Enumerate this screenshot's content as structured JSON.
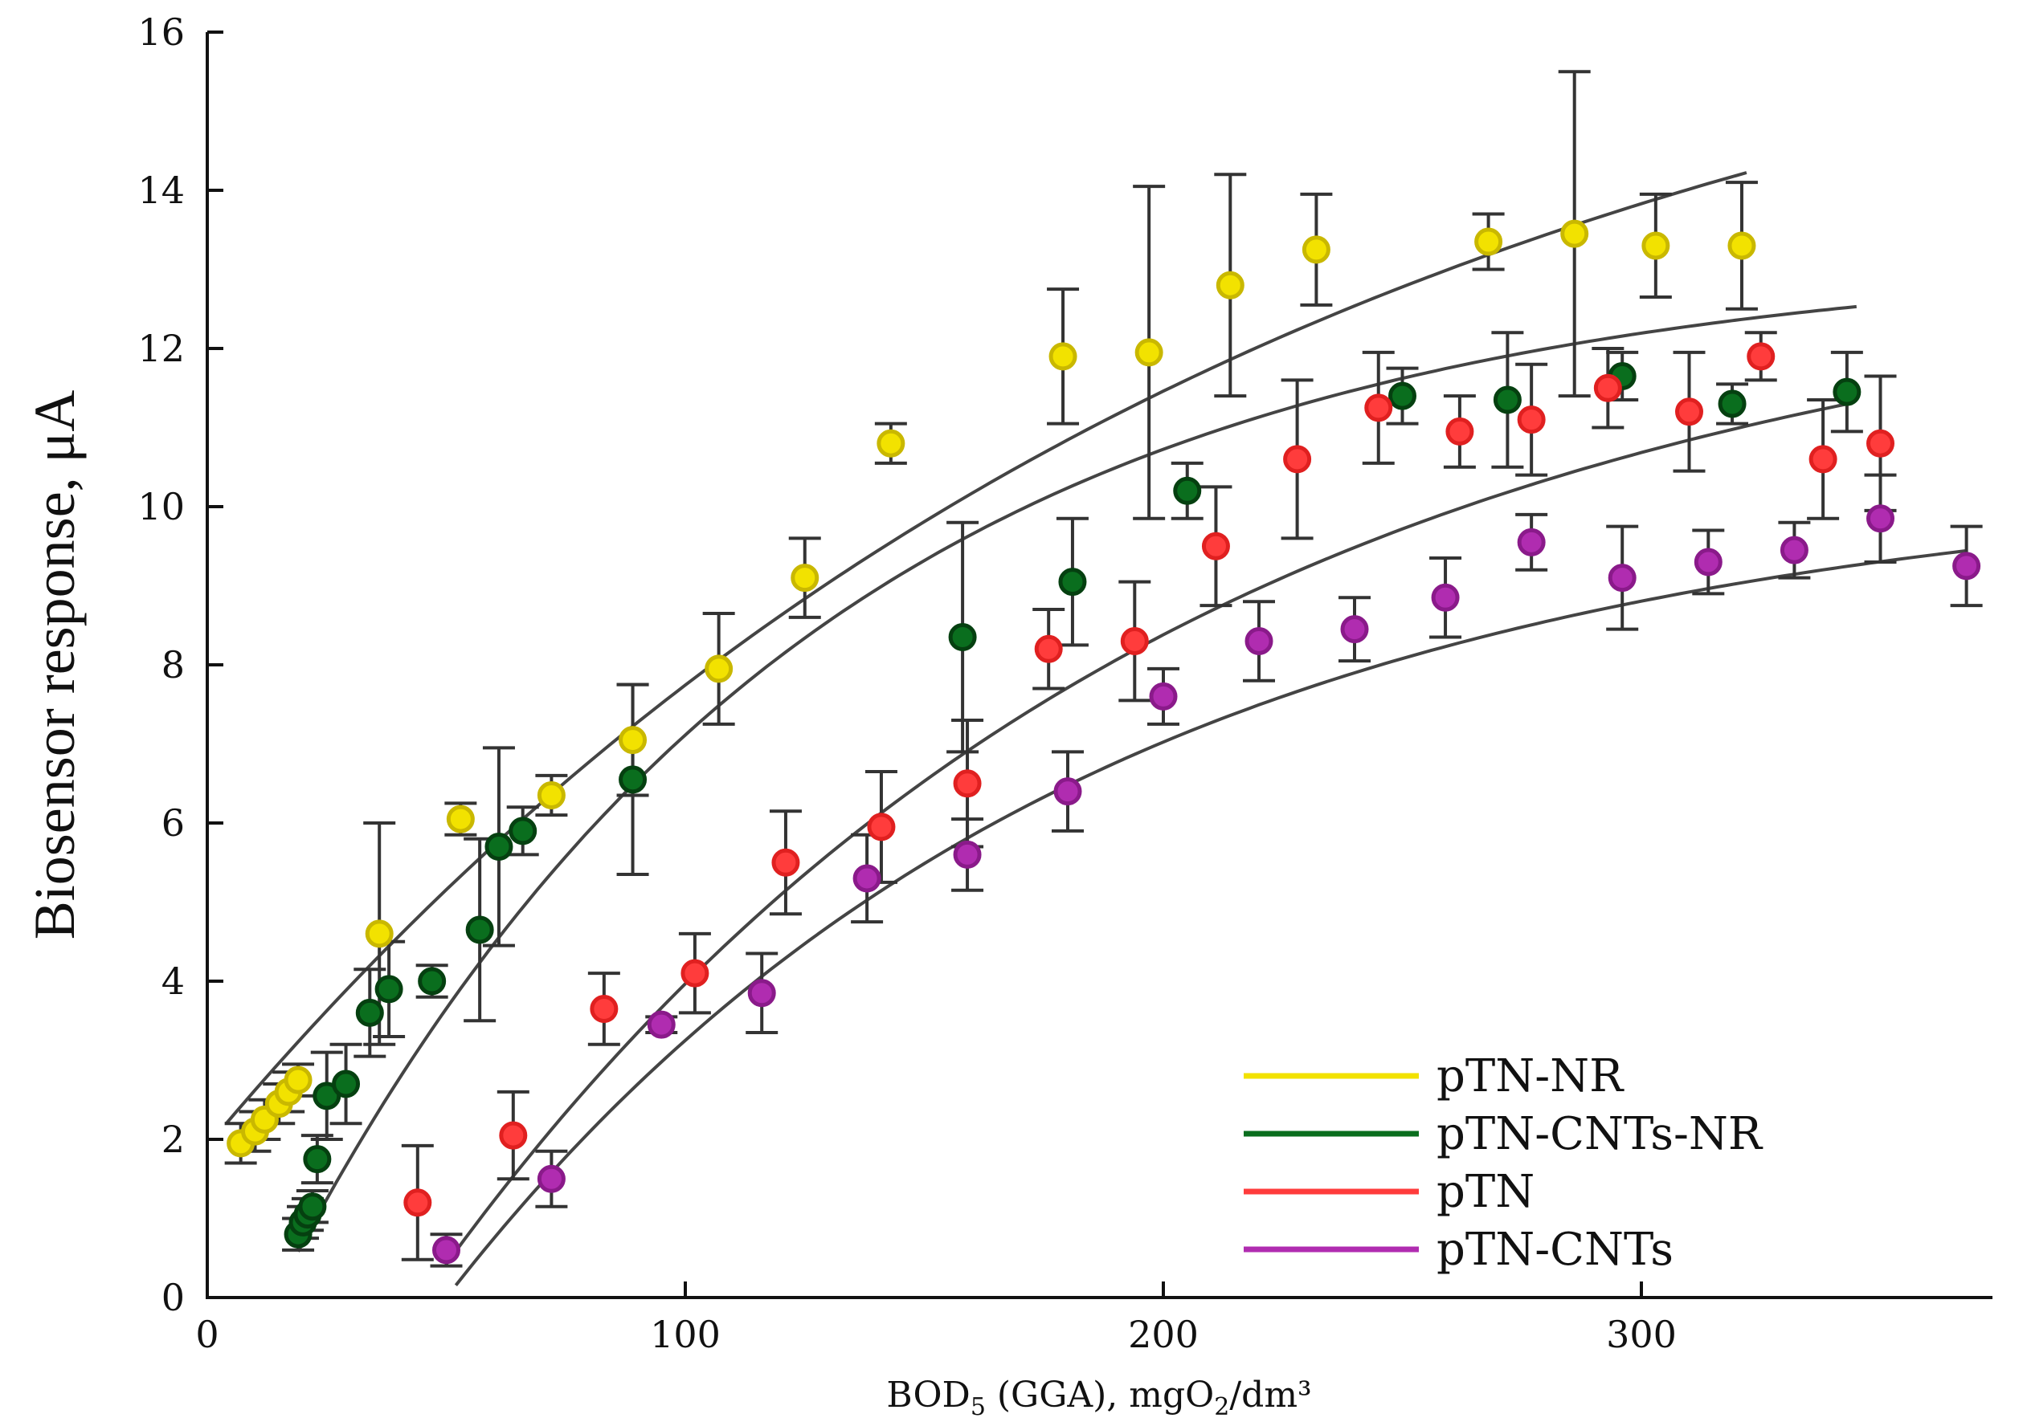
{
  "chart_data": {
    "type": "scatter",
    "xlabel_parts": {
      "main": "BOD",
      "sub": "5",
      "mid": " (GGA), mgO",
      "sub2": "2",
      "tail": "/dm³"
    },
    "ylabel": "Biosensor response, μA",
    "xlim": [
      0,
      380
    ],
    "ylim": [
      0,
      16
    ],
    "xticks": [
      0,
      100,
      200,
      300
    ],
    "yticks": [
      0,
      2,
      4,
      6,
      8,
      10,
      12,
      14,
      16
    ],
    "legend_position": "bottom-right",
    "series": [
      {
        "name": "pTN-NR",
        "color": "#f2e200",
        "edge": "#c9b800",
        "fit": {
          "a": 18.0,
          "k": 0.0045,
          "x0": -25,
          "xmin": 4,
          "xmax": 322
        },
        "points": [
          {
            "x": 7,
            "y": 1.95,
            "e": 0.25
          },
          {
            "x": 10,
            "y": 2.1,
            "e": 0.25
          },
          {
            "x": 12,
            "y": 2.25,
            "e": 0.25
          },
          {
            "x": 15,
            "y": 2.45,
            "e": 0.25
          },
          {
            "x": 17,
            "y": 2.6,
            "e": 0.25
          },
          {
            "x": 19,
            "y": 2.75,
            "e": 0.2
          },
          {
            "x": 36,
            "y": 4.6,
            "e": 1.4
          },
          {
            "x": 53,
            "y": 6.05,
            "e": 0.2
          },
          {
            "x": 72,
            "y": 6.35,
            "e": 0.25
          },
          {
            "x": 89,
            "y": 7.05,
            "e": 0.7
          },
          {
            "x": 107,
            "y": 7.95,
            "e": 0.7
          },
          {
            "x": 125,
            "y": 9.1,
            "e": 0.5
          },
          {
            "x": 143,
            "y": 10.8,
            "e": 0.25
          },
          {
            "x": 179,
            "y": 11.9,
            "e": 0.85
          },
          {
            "x": 197,
            "y": 11.95,
            "e": 2.1
          },
          {
            "x": 214,
            "y": 12.8,
            "e": 1.4
          },
          {
            "x": 232,
            "y": 13.25,
            "e": 0.7
          },
          {
            "x": 268,
            "y": 13.35,
            "e": 0.35
          },
          {
            "x": 286,
            "y": 13.45,
            "e": 2.05
          },
          {
            "x": 303,
            "y": 13.3,
            "e": 0.65
          },
          {
            "x": 321,
            "y": 13.3,
            "e": 0.8
          }
        ]
      },
      {
        "name": "pTN-CNTs-NR",
        "color": "#0a6e1e",
        "edge": "#054010",
        "fit": {
          "a": 13.2,
          "k": 0.009,
          "x0": 14,
          "xmin": 19,
          "xmax": 345
        },
        "points": [
          {
            "x": 19,
            "y": 0.8,
            "e": 0.2
          },
          {
            "x": 20,
            "y": 0.95,
            "e": 0.2
          },
          {
            "x": 21,
            "y": 1.05,
            "e": 0.2
          },
          {
            "x": 22,
            "y": 1.15,
            "e": 0.2
          },
          {
            "x": 23,
            "y": 1.75,
            "e": 0.3
          },
          {
            "x": 25,
            "y": 2.55,
            "e": 0.55
          },
          {
            "x": 29,
            "y": 2.7,
            "e": 0.5
          },
          {
            "x": 34,
            "y": 3.6,
            "e": 0.55
          },
          {
            "x": 38,
            "y": 3.9,
            "e": 0.6
          },
          {
            "x": 47,
            "y": 4.0,
            "e": 0.2
          },
          {
            "x": 57,
            "y": 4.65,
            "e": 1.15
          },
          {
            "x": 61,
            "y": 5.7,
            "e": 1.25
          },
          {
            "x": 66,
            "y": 5.9,
            "e": 0.3
          },
          {
            "x": 89,
            "y": 6.55,
            "e": 1.2
          },
          {
            "x": 158,
            "y": 8.35,
            "e": 1.45
          },
          {
            "x": 181,
            "y": 9.05,
            "e": 0.8
          },
          {
            "x": 205,
            "y": 10.2,
            "e": 0.35
          },
          {
            "x": 250,
            "y": 11.4,
            "e": 0.35
          },
          {
            "x": 272,
            "y": 11.35,
            "e": 0.85
          },
          {
            "x": 296,
            "y": 11.65,
            "e": 0.3
          },
          {
            "x": 319,
            "y": 11.3,
            "e": 0.25
          },
          {
            "x": 343,
            "y": 11.45,
            "e": 0.5
          }
        ]
      },
      {
        "name": "pTN",
        "color": "#ff3c3c",
        "edge": "#e02020",
        "fit": {
          "a": 13.2,
          "k": 0.0065,
          "x0": 45,
          "xmin": 50,
          "xmax": 345
        },
        "points": [
          {
            "x": 44,
            "y": 1.2,
            "e": 0.72
          },
          {
            "x": 64,
            "y": 2.05,
            "e": 0.55
          },
          {
            "x": 83,
            "y": 3.65,
            "e": 0.45
          },
          {
            "x": 102,
            "y": 4.1,
            "e": 0.5
          },
          {
            "x": 121,
            "y": 5.5,
            "e": 0.65
          },
          {
            "x": 141,
            "y": 5.95,
            "e": 0.7
          },
          {
            "x": 159,
            "y": 6.5,
            "e": 0.8
          },
          {
            "x": 176,
            "y": 8.2,
            "e": 0.5
          },
          {
            "x": 194,
            "y": 8.3,
            "e": 0.75
          },
          {
            "x": 211,
            "y": 9.5,
            "e": 0.75
          },
          {
            "x": 228,
            "y": 10.6,
            "e": 1.0
          },
          {
            "x": 245,
            "y": 11.25,
            "e": 0.7
          },
          {
            "x": 262,
            "y": 10.95,
            "e": 0.45
          },
          {
            "x": 277,
            "y": 11.1,
            "e": 0.7
          },
          {
            "x": 293,
            "y": 11.5,
            "e": 0.5
          },
          {
            "x": 310,
            "y": 11.2,
            "e": 0.75
          },
          {
            "x": 325,
            "y": 11.9,
            "e": 0.3
          },
          {
            "x": 338,
            "y": 10.6,
            "e": 0.75
          },
          {
            "x": 350,
            "y": 10.8,
            "e": 0.85
          }
        ]
      },
      {
        "name": "pTN-CNTs",
        "color": "#b02cb0",
        "edge": "#8a1a8a",
        "fit": {
          "a": 10.4,
          "k": 0.0075,
          "x0": 50,
          "xmin": 52,
          "xmax": 368
        },
        "points": [
          {
            "x": 50,
            "y": 0.6,
            "e": 0.2
          },
          {
            "x": 72,
            "y": 1.5,
            "e": 0.35
          },
          {
            "x": 95,
            "y": 3.45,
            "e": 0.1
          },
          {
            "x": 116,
            "y": 3.85,
            "e": 0.5
          },
          {
            "x": 138,
            "y": 5.3,
            "e": 0.55
          },
          {
            "x": 159,
            "y": 5.6,
            "e": 0.45
          },
          {
            "x": 180,
            "y": 6.4,
            "e": 0.5
          },
          {
            "x": 200,
            "y": 7.6,
            "e": 0.35
          },
          {
            "x": 220,
            "y": 8.3,
            "e": 0.5
          },
          {
            "x": 240,
            "y": 8.45,
            "e": 0.4
          },
          {
            "x": 259,
            "y": 8.85,
            "e": 0.5
          },
          {
            "x": 277,
            "y": 9.55,
            "e": 0.35
          },
          {
            "x": 296,
            "y": 9.1,
            "e": 0.65
          },
          {
            "x": 314,
            "y": 9.3,
            "e": 0.4
          },
          {
            "x": 332,
            "y": 9.45,
            "e": 0.35
          },
          {
            "x": 350,
            "y": 9.85,
            "e": 0.55
          },
          {
            "x": 368,
            "y": 9.25,
            "e": 0.5
          }
        ]
      }
    ]
  }
}
